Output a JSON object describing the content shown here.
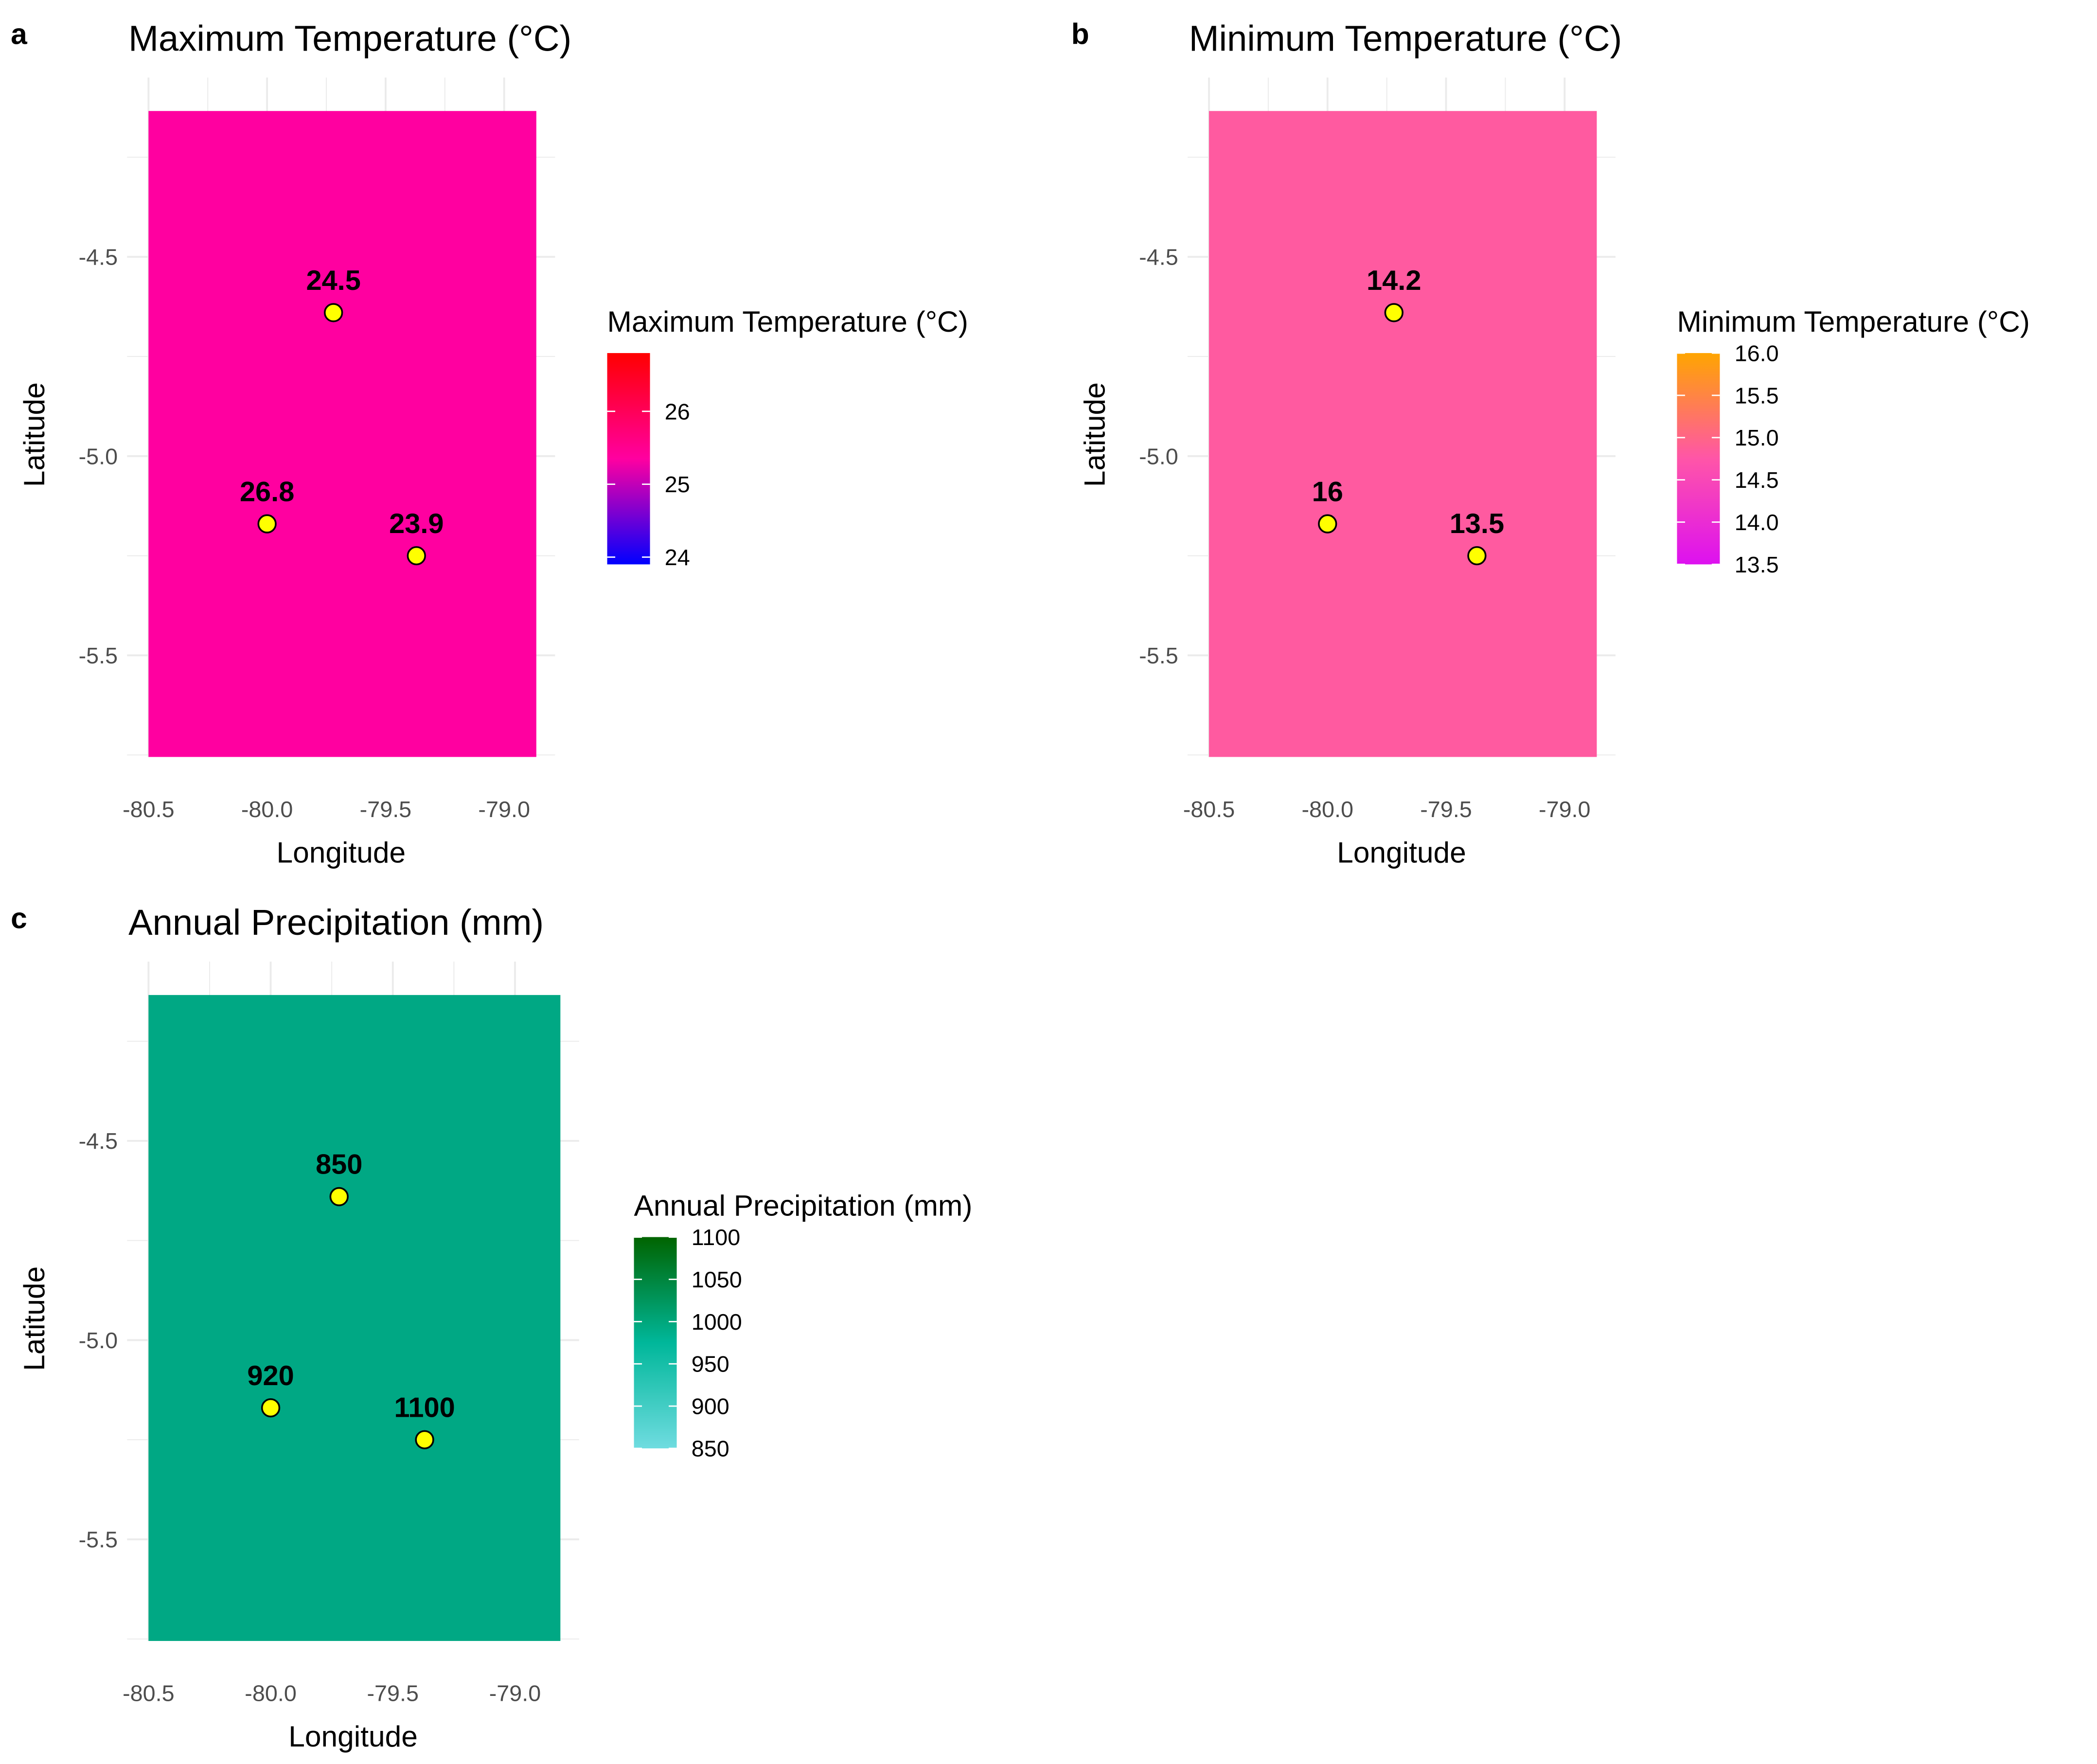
{
  "chart_data": [
    {
      "type": "heatmap",
      "tag": "a",
      "title": "Maximum Temperature (°C)",
      "xlabel": "Longitude",
      "ylabel": "Latitude",
      "xticks": [
        "-80.5",
        "-80.0",
        "-79.5",
        "-79.0"
      ],
      "yticks": [
        "-4.5",
        "-5.0",
        "-5.5"
      ],
      "xlim": [
        -80.5,
        -78.86
      ],
      "ylim": [
        -5.755,
        -4.134
      ],
      "fill_color": "#FF00A0",
      "legend": {
        "title": "Maximum Temperature (°C)",
        "range": [
          23.9,
          26.8
        ],
        "ticks": [
          "24",
          "25",
          "26"
        ],
        "colors": [
          "#0000FF",
          "#FF00A0",
          "#FF0000"
        ]
      },
      "points": [
        {
          "lon": -80.0,
          "lat": -5.17,
          "label": "26.8"
        },
        {
          "lon": -79.72,
          "lat": -4.64,
          "label": "24.5"
        },
        {
          "lon": -79.37,
          "lat": -5.25,
          "label": "23.9"
        }
      ]
    },
    {
      "type": "heatmap",
      "tag": "b",
      "title": "Minimum Temperature (°C)",
      "xlabel": "Longitude",
      "ylabel": "Latitude",
      "xticks": [
        "-80.5",
        "-80.0",
        "-79.5",
        "-79.0"
      ],
      "yticks": [
        "-4.5",
        "-5.0",
        "-5.5"
      ],
      "xlim": [
        -80.5,
        -78.86
      ],
      "ylim": [
        -5.755,
        -4.134
      ],
      "fill_color": "#FF5AA0",
      "legend": {
        "title": "Minimum Temperature (°C)",
        "range": [
          13.5,
          16.0
        ],
        "ticks": [
          "13.5",
          "14.0",
          "14.5",
          "15.0",
          "15.5",
          "16.0"
        ],
        "colors": [
          "#DD11F0",
          "#FF55A8",
          "#FFA500"
        ]
      },
      "points": [
        {
          "lon": -80.0,
          "lat": -5.17,
          "label": "16"
        },
        {
          "lon": -79.72,
          "lat": -4.64,
          "label": "14.2"
        },
        {
          "lon": -79.37,
          "lat": -5.25,
          "label": "13.5"
        }
      ]
    },
    {
      "type": "heatmap",
      "tag": "c",
      "title": "Annual Precipitation (mm)",
      "xlabel": "Longitude",
      "ylabel": "Latitude",
      "xticks": [
        "-80.5",
        "-80.0",
        "-79.5",
        "-79.0"
      ],
      "yticks": [
        "-4.5",
        "-5.0",
        "-5.5"
      ],
      "xlim": [
        -80.5,
        -78.86
      ],
      "ylim": [
        -5.755,
        -4.134
      ],
      "fill_color": "#00A884",
      "legend": {
        "title": "Annual Precipitation (mm)",
        "range": [
          850,
          1100
        ],
        "ticks": [
          "850",
          "900",
          "950",
          "1000",
          "1050",
          "1100"
        ],
        "colors": [
          "#6FDCE0",
          "#00B79A",
          "#006400"
        ]
      },
      "points": [
        {
          "lon": -80.0,
          "lat": -5.17,
          "label": "920"
        },
        {
          "lon": -79.72,
          "lat": -4.64,
          "label": "850"
        },
        {
          "lon": -79.37,
          "lat": -5.25,
          "label": "1100"
        }
      ]
    }
  ]
}
